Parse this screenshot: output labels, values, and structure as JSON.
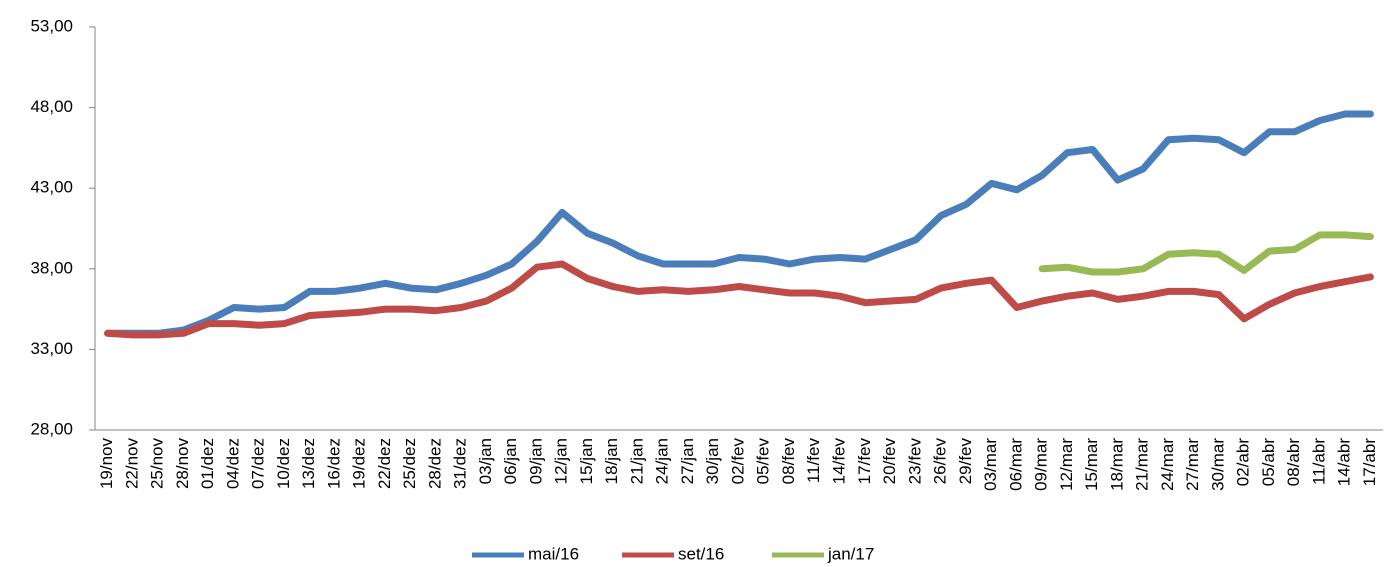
{
  "chart_data": {
    "type": "line",
    "categories": [
      "19/nov",
      "22/nov",
      "25/nov",
      "28/nov",
      "01/dez",
      "04/dez",
      "07/dez",
      "10/dez",
      "13/dez",
      "16/dez",
      "19/dez",
      "22/dez",
      "25/dez",
      "28/dez",
      "31/dez",
      "03/jan",
      "06/jan",
      "09/jan",
      "12/jan",
      "15/jan",
      "18/jan",
      "21/jan",
      "24/jan",
      "27/jan",
      "30/jan",
      "02/fev",
      "05/fev",
      "08/fev",
      "11/fev",
      "14/fev",
      "17/fev",
      "20/fev",
      "23/fev",
      "26/fev",
      "29/fev",
      "03/mar",
      "06/mar",
      "09/mar",
      "12/mar",
      "15/mar",
      "18/mar",
      "21/mar",
      "24/mar",
      "27/mar",
      "30/mar",
      "02/abr",
      "05/abr",
      "08/abr",
      "11/abr",
      "14/abr",
      "17/abr"
    ],
    "series": [
      {
        "name": "mai/16",
        "color": "#4a7ebb",
        "values": [
          34.0,
          34.0,
          34.0,
          34.2,
          34.8,
          35.6,
          35.5,
          35.6,
          36.6,
          36.6,
          36.8,
          37.1,
          36.8,
          36.7,
          37.1,
          37.6,
          38.3,
          39.7,
          41.5,
          40.2,
          39.6,
          38.8,
          38.3,
          38.3,
          38.3,
          38.7,
          38.6,
          38.3,
          38.6,
          38.7,
          38.6,
          39.2,
          39.8,
          41.3,
          42.0,
          43.3,
          42.9,
          43.8,
          45.2,
          45.4,
          43.5,
          44.2,
          46.0,
          46.1,
          46.0,
          45.2,
          46.5,
          46.5,
          47.2,
          47.6,
          47.6
        ]
      },
      {
        "name": "set/16",
        "color": "#be4b48",
        "values": [
          34.0,
          33.9,
          33.9,
          34.0,
          34.6,
          34.6,
          34.5,
          34.6,
          35.1,
          35.2,
          35.3,
          35.5,
          35.5,
          35.4,
          35.6,
          36.0,
          36.8,
          38.1,
          38.3,
          37.4,
          36.9,
          36.6,
          36.7,
          36.6,
          36.7,
          36.9,
          36.7,
          36.5,
          36.5,
          36.3,
          35.9,
          36.0,
          36.1,
          36.8,
          37.1,
          37.3,
          35.6,
          36.0,
          36.3,
          36.5,
          36.1,
          36.3,
          36.6,
          36.6,
          36.4,
          34.9,
          35.8,
          36.5,
          36.9,
          37.2,
          37.5
        ]
      },
      {
        "name": "jan/17",
        "color": "#98b954",
        "values": [
          null,
          null,
          null,
          null,
          null,
          null,
          null,
          null,
          null,
          null,
          null,
          null,
          null,
          null,
          null,
          null,
          null,
          null,
          null,
          null,
          null,
          null,
          null,
          null,
          null,
          null,
          null,
          null,
          null,
          null,
          null,
          null,
          null,
          null,
          null,
          null,
          null,
          38.0,
          38.1,
          37.8,
          37.8,
          38.0,
          38.9,
          39.0,
          38.9,
          37.9,
          39.1,
          39.2,
          40.1,
          40.1,
          40.0
        ]
      }
    ],
    "ylim": [
      28,
      53
    ],
    "yticks": [
      {
        "value": 28,
        "label": "28,00"
      },
      {
        "value": 33,
        "label": "33,00"
      },
      {
        "value": 38,
        "label": "38,00"
      },
      {
        "value": 43,
        "label": "43,00"
      },
      {
        "value": 48,
        "label": "48,00"
      },
      {
        "value": 53,
        "label": "53,00"
      }
    ],
    "grid": false,
    "legend": "bottom"
  }
}
